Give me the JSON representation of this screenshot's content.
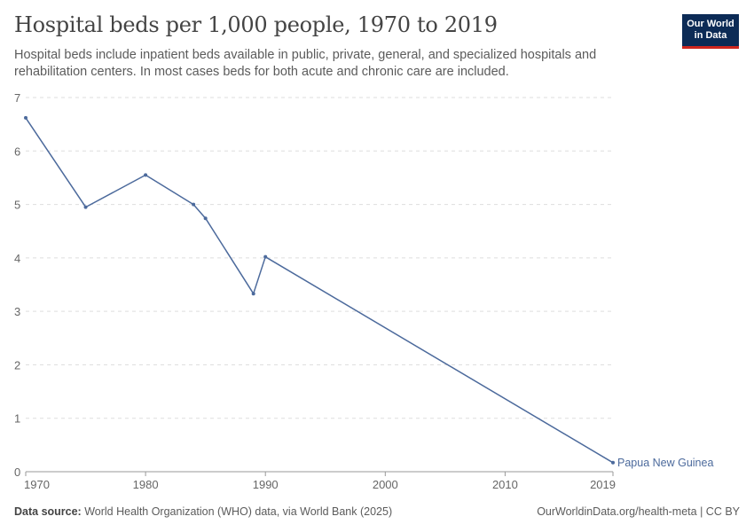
{
  "header": {
    "title": "Hospital beds per 1,000 people, 1970 to 2019",
    "subtitle": "Hospital beds include inpatient beds available in public, private, general, and specialized hospitals and rehabilitation centers. In most cases beds for both acute and chronic care are included."
  },
  "logo": {
    "line1": "Our World",
    "line2": "in Data"
  },
  "footer": {
    "source_label": "Data source:",
    "source_text": "World Health Organization (WHO) data, via World Bank (2025)",
    "right_text": "OurWorldinData.org/health-meta | CC BY"
  },
  "colors": {
    "line": "#4c6a9c",
    "grid": "#dddddd",
    "axis_text": "#666666"
  },
  "chart_data": {
    "type": "line",
    "title": "Hospital beds per 1,000 people, 1970 to 2019",
    "xlabel": "",
    "ylabel": "",
    "xlim": [
      1970,
      2019
    ],
    "ylim": [
      0,
      7
    ],
    "x_ticks": [
      1970,
      1980,
      1990,
      2000,
      2010,
      2019
    ],
    "y_ticks": [
      0,
      1,
      2,
      3,
      4,
      5,
      6,
      7
    ],
    "grid": "horizontal-dashed",
    "series": [
      {
        "name": "Papua New Guinea",
        "x": [
          1970,
          1975,
          1980,
          1984,
          1985,
          1989,
          1990,
          2019
        ],
        "y": [
          6.62,
          4.95,
          5.55,
          5.0,
          4.74,
          3.33,
          4.02,
          0.17
        ]
      }
    ]
  }
}
